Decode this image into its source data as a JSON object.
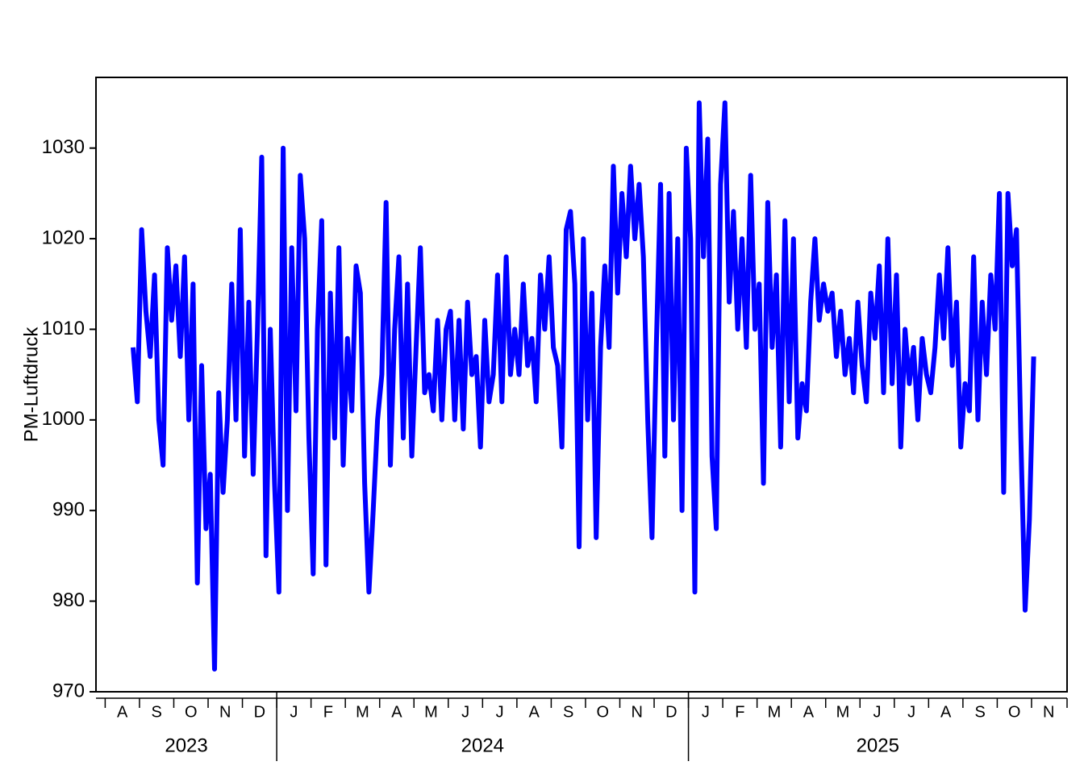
{
  "chart_data": {
    "type": "line",
    "ylabel": "PM-Luftdruck",
    "color": "#0000ff",
    "ylim": [
      970,
      1037.8
    ],
    "yticks": [
      970,
      980,
      990,
      1000,
      1010,
      1020,
      1030
    ],
    "years": [
      {
        "label": "2023",
        "months": [
          {
            "label": "A",
            "values": [
              null,
              null,
              null,
              null,
              null,
              null,
              1008,
              1002
            ]
          },
          {
            "label": "S",
            "values": [
              1021,
              1012,
              1007,
              1016,
              1000,
              995,
              1019,
              1011
            ]
          },
          {
            "label": "O",
            "values": [
              1017,
              1007,
              1018,
              1000,
              1015,
              982,
              1006,
              988
            ]
          },
          {
            "label": "N",
            "values": [
              994,
              972.5,
              1003,
              992,
              1000,
              1015,
              1000,
              1021
            ]
          },
          {
            "label": "D",
            "values": [
              996,
              1013,
              994,
              1010,
              1029,
              985,
              1010,
              993
            ]
          }
        ]
      },
      {
        "label": "2024",
        "months": [
          {
            "label": "J",
            "values": [
              981,
              1030,
              990,
              1019,
              1001,
              1027,
              1020,
              998
            ]
          },
          {
            "label": "F",
            "values": [
              983,
              1010,
              1022,
              984,
              1014,
              998,
              1019,
              995
            ]
          },
          {
            "label": "M",
            "values": [
              1009,
              1001,
              1017,
              1014,
              993,
              981,
              990,
              1000
            ]
          },
          {
            "label": "A",
            "values": [
              1005,
              1024,
              995,
              1010,
              1018,
              998,
              1015,
              996
            ]
          },
          {
            "label": "M",
            "values": [
              1008,
              1019,
              1003,
              1005,
              1001,
              1011,
              1000,
              1010
            ]
          },
          {
            "label": "J",
            "values": [
              1012,
              1000,
              1011,
              999,
              1013,
              1005,
              1007,
              997
            ]
          },
          {
            "label": "J",
            "values": [
              1011,
              1002,
              1005,
              1016,
              1002,
              1018,
              1005,
              1010
            ]
          },
          {
            "label": "A",
            "values": [
              1005,
              1015,
              1006,
              1009,
              1002,
              1016,
              1010,
              1018
            ]
          },
          {
            "label": "S",
            "values": [
              1008,
              1006,
              997,
              1021,
              1023,
              1015,
              986,
              1020
            ]
          },
          {
            "label": "O",
            "values": [
              1000,
              1014,
              987,
              1008,
              1017,
              1008,
              1028,
              1014
            ]
          },
          {
            "label": "N",
            "values": [
              1025,
              1018,
              1028,
              1020,
              1026,
              1018,
              1000,
              987
            ]
          },
          {
            "label": "D",
            "values": [
              1008,
              1026,
              996,
              1025,
              1000,
              1020,
              990,
              1030
            ]
          }
        ]
      },
      {
        "label": "2025",
        "months": [
          {
            "label": "J",
            "values": [
              1020,
              981,
              1035,
              1018,
              1031,
              996,
              988,
              1026
            ]
          },
          {
            "label": "F",
            "values": [
              1035,
              1013,
              1023,
              1010,
              1020,
              1008,
              1027,
              1010
            ]
          },
          {
            "label": "M",
            "values": [
              1015,
              993,
              1024,
              1008,
              1016,
              997,
              1022,
              1002
            ]
          },
          {
            "label": "A",
            "values": [
              1020,
              998,
              1004,
              1001,
              1013,
              1020,
              1011,
              1015
            ]
          },
          {
            "label": "M",
            "values": [
              1012,
              1014,
              1007,
              1012,
              1005,
              1009,
              1003,
              1013
            ]
          },
          {
            "label": "J",
            "values": [
              1006,
              1002,
              1014,
              1009,
              1017,
              1003,
              1020,
              1004
            ]
          },
          {
            "label": "J",
            "values": [
              1016,
              997,
              1010,
              1004,
              1008,
              1000,
              1009,
              1005
            ]
          },
          {
            "label": "A",
            "values": [
              1003,
              1008,
              1016,
              1009,
              1019,
              1006,
              1013,
              997
            ]
          },
          {
            "label": "S",
            "values": [
              1004,
              1001,
              1018,
              1000,
              1013,
              1005,
              1016,
              1010
            ]
          },
          {
            "label": "O",
            "values": [
              1025,
              992,
              1025,
              1017,
              1021,
              998,
              979,
              989
            ]
          },
          {
            "label": "N",
            "values": [
              1007,
              null,
              null,
              null,
              null,
              null,
              null,
              null
            ]
          }
        ]
      }
    ]
  }
}
